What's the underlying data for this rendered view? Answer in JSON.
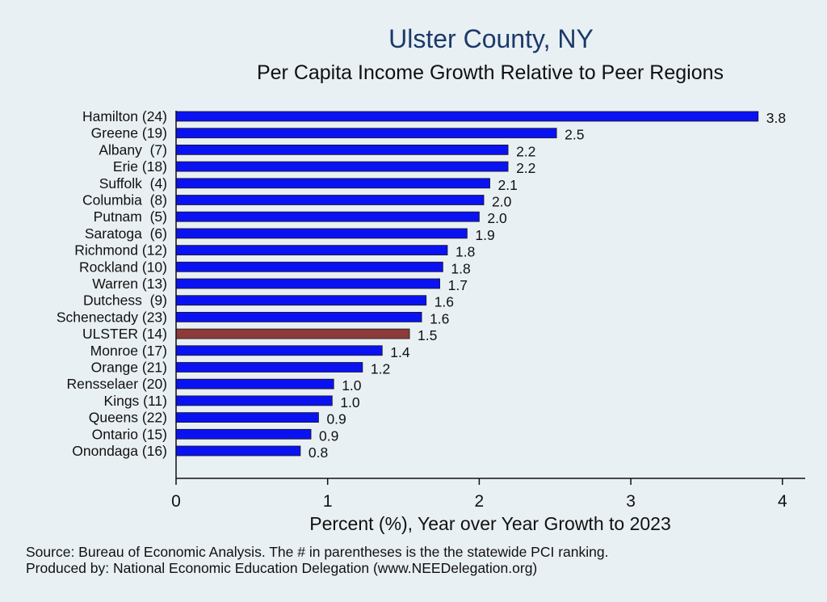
{
  "chart_data": {
    "type": "bar",
    "orientation": "horizontal",
    "title": "Ulster County, NY",
    "subtitle": "Per Capita Income Growth Relative to Peer Regions",
    "xlabel": "Percent (%), Year over Year Growth to 2023",
    "ylabel": "",
    "xlim": [
      0,
      4.15
    ],
    "xticks": [
      "0",
      "1",
      "2",
      "3",
      "4"
    ],
    "grid": false,
    "categories": [
      "Hamilton (24)",
      "Greene (19)",
      "Albany  (7)",
      "Erie (18)",
      "Suffolk  (4)",
      "Columbia  (8)",
      "Putnam  (5)",
      "Saratoga  (6)",
      "Richmond (12)",
      "Rockland (10)",
      "Warren (13)",
      "Dutchess  (9)",
      "Schenectady (23)",
      "ULSTER (14)",
      "Monroe (17)",
      "Orange (21)",
      "Rensselaer (20)",
      "Kings (11)",
      "Queens (22)",
      "Ontario (15)",
      "Onondaga (16)"
    ],
    "values": [
      3.84,
      2.51,
      2.19,
      2.19,
      2.07,
      2.03,
      2.0,
      1.92,
      1.79,
      1.76,
      1.74,
      1.65,
      1.62,
      1.54,
      1.36,
      1.23,
      1.04,
      1.03,
      0.94,
      0.89,
      0.82
    ],
    "value_labels": [
      "3.8",
      "2.5",
      "2.2",
      "2.2",
      "2.1",
      "2.0",
      "2.0",
      "1.9",
      "1.8",
      "1.8",
      "1.7",
      "1.6",
      "1.6",
      "1.5",
      "1.4",
      "1.2",
      "1.0",
      "1.0",
      "0.9",
      "0.9",
      "0.8"
    ],
    "highlight_category": "ULSTER (14)",
    "bar_color": "#0a12f2",
    "highlight_color": "#8c3a3a",
    "bar_outline_color": "#1a1a1a"
  },
  "notes": {
    "source": "Source: Bureau of Economic Analysis. The # in parentheses is the the statewide PCI ranking.",
    "producer": "Produced by: National Economic Education Delegation (www.NEEDelegation.org)"
  },
  "colors": {
    "background": "#e9f0f3",
    "title": "#1a3a6b",
    "axis": "#111111"
  }
}
